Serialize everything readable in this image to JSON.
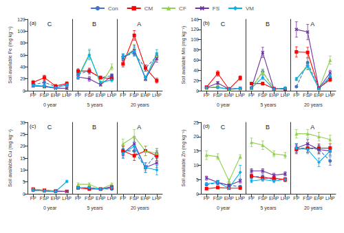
{
  "chart_data": [
    {
      "type": "line",
      "ylabel": "Soil available Fe (mg kg⁻¹)",
      "annotation": "(a)",
      "ylim": [
        0,
        120
      ],
      "yticks": [
        0,
        20,
        40,
        60,
        80,
        100,
        120
      ],
      "grid": false,
      "legend": "top",
      "categories": [
        "FP",
        "FSP",
        "EHP",
        "LHP"
      ],
      "groups": [
        "0 year",
        "5 years",
        "20 years"
      ],
      "group_labels": [
        "C",
        "B",
        "A"
      ],
      "series": [
        {
          "name": "Con",
          "color": "#4472c4",
          "line_style": "dashed",
          "marker": "circle",
          "values": [
            [
              10,
              14,
              7,
              9
            ],
            [
              28,
              33,
              22,
              25
            ],
            [
              57,
              63,
              38,
              58
            ]
          ],
          "errors": [
            [
              2,
              3,
              1,
              2
            ],
            [
              3,
              4,
              2,
              3
            ],
            [
              5,
              5,
              5,
              6
            ]
          ]
        },
        {
          "name": "CM",
          "color": "#ff0000",
          "line_style": "solid",
          "marker": "square",
          "values": [
            [
              14,
              22,
              8,
              12
            ],
            [
              33,
              33,
              22,
              20
            ],
            [
              45,
              93,
              38,
              17
            ]
          ],
          "errors": [
            [
              3,
              4,
              2,
              3
            ],
            [
              4,
              5,
              2,
              3
            ],
            [
              5,
              8,
              5,
              4
            ]
          ]
        },
        {
          "name": "CF",
          "color": "#92d050",
          "line_style": "solid",
          "marker": "triangle",
          "values": [
            [
              9,
              7,
              5,
              4
            ],
            [
              24,
              62,
              10,
              40
            ],
            [
              56,
              70,
              20,
              58
            ]
          ],
          "errors": [
            [
              2,
              2,
              1,
              1
            ],
            [
              3,
              8,
              2,
              5
            ],
            [
              5,
              8,
              3,
              6
            ]
          ]
        },
        {
          "name": "FS",
          "color": "#7030a0",
          "line_style": "solid",
          "marker": "x",
          "values": [
            [
              8,
              7,
              4,
              4
            ],
            [
              23,
              20,
              10,
              25
            ],
            [
              55,
              68,
              20,
              54
            ]
          ],
          "errors": [
            [
              2,
              2,
              1,
              1
            ],
            [
              3,
              4,
              2,
              3
            ],
            [
              5,
              8,
              3,
              6
            ]
          ]
        },
        {
          "name": "VM",
          "color": "#00b0f0",
          "line_style": "solid",
          "marker": "diamond",
          "values": [
            [
              9,
              8,
              5,
              10
            ],
            [
              22,
              60,
              14,
              18
            ],
            [
              57,
              66,
              22,
              62
            ]
          ],
          "errors": [
            [
              2,
              2,
              1,
              2
            ],
            [
              3,
              8,
              2,
              3
            ],
            [
              5,
              7,
              3,
              7
            ]
          ]
        }
      ]
    },
    {
      "type": "line",
      "ylabel": "Soil available Mn (mg kg⁻¹)",
      "annotation": "(b)",
      "ylim": [
        0,
        140
      ],
      "yticks": [
        0,
        20,
        40,
        60,
        80,
        100,
        120,
        140
      ],
      "grid": false,
      "categories": [
        "FP",
        "FSP",
        "EHP",
        "LHP"
      ],
      "groups": [
        "0 year",
        "5 years",
        "20 years"
      ],
      "group_labels": [
        "C",
        "B",
        "A"
      ],
      "series": [
        {
          "name": "Con",
          "color": "#4472c4",
          "line_style": "dashed",
          "marker": "circle",
          "values": [
            [
              6,
              7,
              4,
              4
            ],
            [
              6,
              37,
              4,
              5
            ],
            [
              8,
              55,
              5,
              25
            ]
          ],
          "errors": [
            [
              1,
              2,
              1,
              1
            ],
            [
              1,
              5,
              1,
              1
            ],
            [
              2,
              8,
              1,
              4
            ]
          ]
        },
        {
          "name": "CM",
          "color": "#ff0000",
          "line_style": "solid",
          "marker": "square",
          "values": [
            [
              7,
              34,
              3,
              25
            ],
            [
              14,
              14,
              4,
              3
            ],
            [
              76,
              75,
              5,
              22
            ]
          ],
          "errors": [
            [
              2,
              5,
              1,
              4
            ],
            [
              2,
              3,
              1,
              1
            ],
            [
              10,
              10,
              1,
              4
            ]
          ]
        },
        {
          "name": "CF",
          "color": "#92d050",
          "line_style": "solid",
          "marker": "triangle",
          "values": [
            [
              5,
              8,
              2,
              4
            ],
            [
              5,
              37,
              3,
              5
            ],
            [
              23,
              50,
              4,
              60
            ]
          ],
          "errors": [
            [
              1,
              2,
              1,
              1
            ],
            [
              1,
              5,
              1,
              1
            ],
            [
              3,
              8,
              1,
              8
            ]
          ]
        },
        {
          "name": "FS",
          "color": "#7030a0",
          "line_style": "solid",
          "marker": "x",
          "values": [
            [
              6,
              15,
              3,
              5
            ],
            [
              5,
              75,
              3,
              4
            ],
            [
              120,
              115,
              5,
              35
            ]
          ],
          "errors": [
            [
              1,
              3,
              1,
              1
            ],
            [
              1,
              10,
              1,
              1
            ],
            [
              15,
              15,
              1,
              5
            ]
          ]
        },
        {
          "name": "VM",
          "color": "#00b0f0",
          "line_style": "solid",
          "marker": "diamond",
          "values": [
            [
              6,
              6,
              3,
              5
            ],
            [
              5,
              26,
              3,
              5
            ],
            [
              23,
              48,
              4,
              28
            ]
          ],
          "errors": [
            [
              1,
              2,
              1,
              1
            ],
            [
              1,
              4,
              1,
              1
            ],
            [
              3,
              7,
              1,
              4
            ]
          ]
        }
      ]
    },
    {
      "type": "line",
      "ylabel": "Soil available Cu (mg kg⁻¹)",
      "annotation": "(c)",
      "ylim": [
        0,
        30
      ],
      "yticks": [
        0,
        5,
        10,
        15,
        20,
        25,
        30
      ],
      "grid": false,
      "categories": [
        "FP",
        "FSP",
        "EHP",
        "LHP"
      ],
      "groups": [
        "0 year",
        "5 years",
        "20 years"
      ],
      "group_labels": [
        "C",
        "B",
        "A"
      ],
      "series": [
        {
          "name": "Con",
          "color": "#4472c4",
          "line_style": "dashed",
          "marker": "circle",
          "values": [
            [
              1.5,
              1.2,
              1.0,
              1.0
            ],
            [
              2.5,
              2.5,
              2.0,
              2.0
            ],
            [
              18,
              18,
              11,
              17
            ]
          ],
          "errors": [
            [
              0.3,
              0.2,
              0.2,
              0.2
            ],
            [
              0.4,
              0.4,
              0.3,
              0.3
            ],
            [
              2,
              2,
              1,
              2
            ]
          ]
        },
        {
          "name": "CM",
          "color": "#ff0000",
          "line_style": "solid",
          "marker": "square",
          "values": [
            [
              2.0,
              1.5,
              1.2,
              1.0
            ],
            [
              2.5,
              2.0,
              2.0,
              2.5
            ],
            [
              18,
              16,
              18,
              16
            ]
          ],
          "errors": [
            [
              0.3,
              0.2,
              0.2,
              0.2
            ],
            [
              0.4,
              0.3,
              0.3,
              0.4
            ],
            [
              2,
              2,
              2,
              2
            ]
          ]
        },
        {
          "name": "CF",
          "color": "#92d050",
          "line_style": "solid",
          "marker": "triangle",
          "values": [
            [
              2.0,
              1.5,
              1.2,
              1.0
            ],
            [
              4.0,
              4.0,
              2.0,
              4.0
            ],
            [
              21,
              24,
              18,
              17
            ]
          ],
          "errors": [
            [
              0.3,
              0.3,
              0.2,
              0.2
            ],
            [
              0.6,
              0.6,
              0.3,
              0.5
            ],
            [
              2,
              3,
              2,
              2
            ]
          ]
        },
        {
          "name": "FS",
          "color": "#7030a0",
          "line_style": "solid",
          "marker": "x",
          "values": [
            [
              1.5,
              1.2,
              1.0,
              1.0
            ],
            [
              2.5,
              2.5,
              2.0,
              3.0
            ],
            [
              17,
              21,
              11,
              13
            ]
          ],
          "errors": [
            [
              0.3,
              0.2,
              0.2,
              0.2
            ],
            [
              0.4,
              0.4,
              0.3,
              0.4
            ],
            [
              2,
              3,
              2,
              2
            ]
          ]
        },
        {
          "name": "VM",
          "color": "#00b0f0",
          "line_style": "solid",
          "marker": "diamond",
          "values": [
            [
              1.5,
              1.2,
              1.0,
              5.2
            ],
            [
              2.5,
              2.5,
              2.0,
              2.5
            ],
            [
              17,
              20,
              11,
              10
            ]
          ],
          "errors": [
            [
              0.3,
              0.2,
              0.2,
              0.5
            ],
            [
              0.4,
              0.4,
              0.3,
              0.4
            ],
            [
              2,
              2,
              2,
              2
            ]
          ]
        }
      ]
    },
    {
      "type": "line",
      "ylabel": "Soil available Zn (mg kg⁻¹)",
      "annotation": "(d)",
      "ylim": [
        0,
        25
      ],
      "yticks": [
        0,
        5,
        10,
        15,
        20,
        25
      ],
      "grid": false,
      "categories": [
        "FP",
        "FSP",
        "EHP",
        "LHP"
      ],
      "groups": [
        "0 year",
        "5 years",
        "20 years"
      ],
      "group_labels": [
        "C",
        "B",
        "A"
      ],
      "series": [
        {
          "name": "Con",
          "color": "#4472c4",
          "line_style": "dashed",
          "marker": "circle",
          "values": [
            [
              3.2,
              3.8,
              3.0,
              2.5
            ],
            [
              6.0,
              6.0,
              5.0,
              5.0
            ],
            [
              16.0,
              16.0,
              15.5,
              11.5
            ]
          ],
          "errors": [
            [
              0.5,
              0.7,
              0.5,
              0.5
            ],
            [
              0.7,
              0.7,
              0.7,
              0.7
            ],
            [
              1.5,
              1.5,
              1.5,
              1.5
            ]
          ]
        },
        {
          "name": "CM",
          "color": "#ff0000",
          "line_style": "solid",
          "marker": "square",
          "values": [
            [
              1.8,
              2.2,
              2.0,
              2.0
            ],
            [
              6.2,
              5.5,
              5.5,
              5.0
            ],
            [
              15.5,
              16.0,
              16.0,
              16.0
            ]
          ],
          "errors": [
            [
              0.4,
              0.4,
              0.4,
              0.4
            ],
            [
              0.7,
              0.7,
              0.7,
              0.7
            ],
            [
              1.5,
              1.5,
              1.5,
              1.5
            ]
          ]
        },
        {
          "name": "CF",
          "color": "#92d050",
          "line_style": "solid",
          "marker": "triangle",
          "values": [
            [
              13.5,
              13.0,
              4.5,
              13.0
            ],
            [
              18.0,
              17.0,
              14.0,
              13.5
            ],
            [
              21.0,
              21.0,
              20.0,
              19.0
            ]
          ],
          "errors": [
            [
              1.5,
              1.0,
              0.7,
              0.7
            ],
            [
              1.5,
              1.5,
              1.0,
              1.0
            ],
            [
              1.5,
              1.5,
              1.5,
              1.5
            ]
          ]
        },
        {
          "name": "FS",
          "color": "#7030a0",
          "line_style": "solid",
          "marker": "x",
          "values": [
            [
              5.5,
              4.0,
              3.0,
              4.5
            ],
            [
              8.0,
              8.0,
              6.5,
              7.0
            ],
            [
              16.0,
              17.5,
              15.5,
              15.0
            ]
          ],
          "errors": [
            [
              0.7,
              0.7,
              0.5,
              0.7
            ],
            [
              0.8,
              0.8,
              0.7,
              0.7
            ],
            [
              1.5,
              1.5,
              1.5,
              1.5
            ]
          ]
        },
        {
          "name": "VM",
          "color": "#00b0f0",
          "line_style": "solid",
          "marker": "diamond",
          "values": [
            [
              3.5,
              4.0,
              2.0,
              7.5
            ],
            [
              4.5,
              5.0,
              4.5,
              5.0
            ],
            [
              16.0,
              15.5,
              11.0,
              15.0
            ]
          ],
          "errors": [
            [
              0.5,
              0.7,
              0.4,
              2.5
            ],
            [
              0.6,
              0.6,
              0.6,
              0.6
            ],
            [
              1.5,
              1.5,
              1.5,
              1.5
            ]
          ]
        }
      ]
    }
  ]
}
